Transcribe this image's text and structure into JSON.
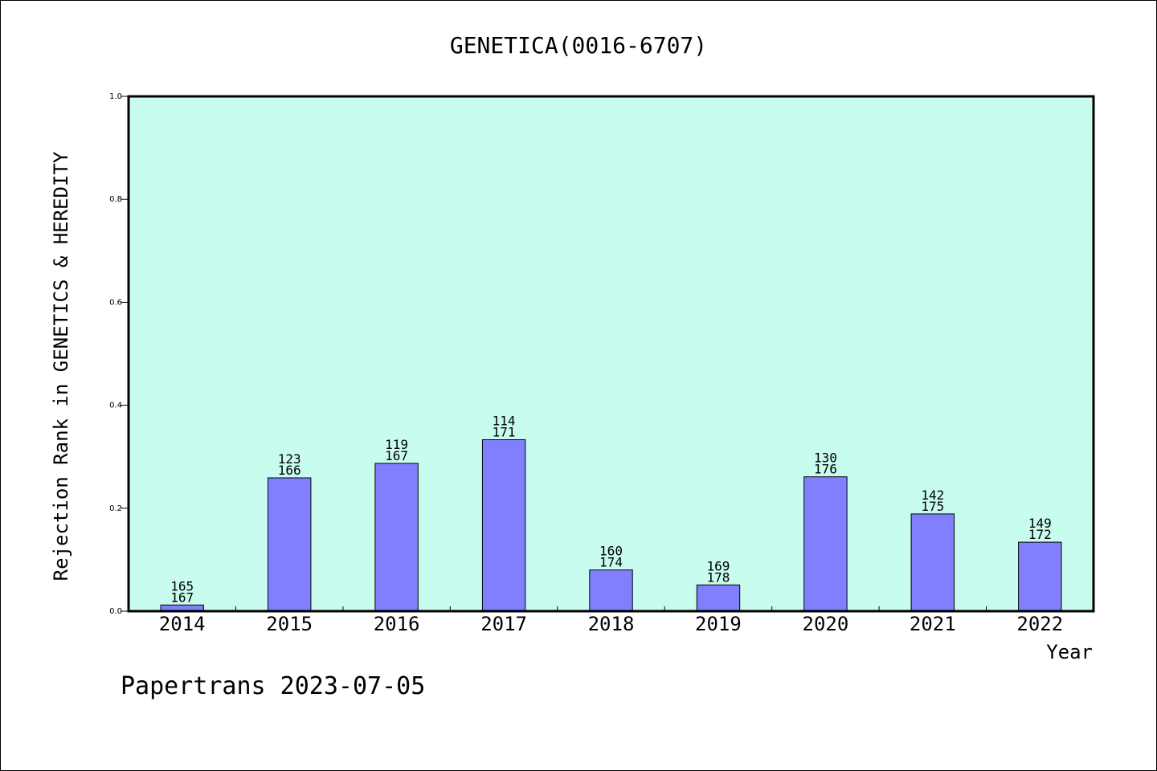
{
  "chart_data": {
    "type": "bar",
    "title": "GENETICA(0016-6707)",
    "xlabel": "Year",
    "ylabel": "Rejection Rank in GENETICS & HEREDITY",
    "categories": [
      "2014",
      "2015",
      "2016",
      "2017",
      "2018",
      "2019",
      "2020",
      "2021",
      "2022"
    ],
    "values": [
      0.012,
      0.259,
      0.287,
      0.333,
      0.08,
      0.051,
      0.261,
      0.189,
      0.134
    ],
    "rank_labels": [
      "165",
      "123",
      "119",
      "114",
      "160",
      "169",
      "130",
      "142",
      "149"
    ],
    "total_labels": [
      "167",
      "166",
      "167",
      "171",
      "174",
      "178",
      "176",
      "175",
      "172"
    ],
    "ylim": [
      0,
      1.0
    ],
    "yticks": [
      "0.0",
      "0.2",
      "0.4",
      "0.6",
      "0.8",
      "1.0"
    ],
    "grid": false,
    "colors": {
      "plot_background": "#c8fcee",
      "bar_fill": "#8080ff",
      "bar_stroke": "#000000",
      "axis": "#000000"
    }
  },
  "footer": "Papertrans 2023-07-05"
}
